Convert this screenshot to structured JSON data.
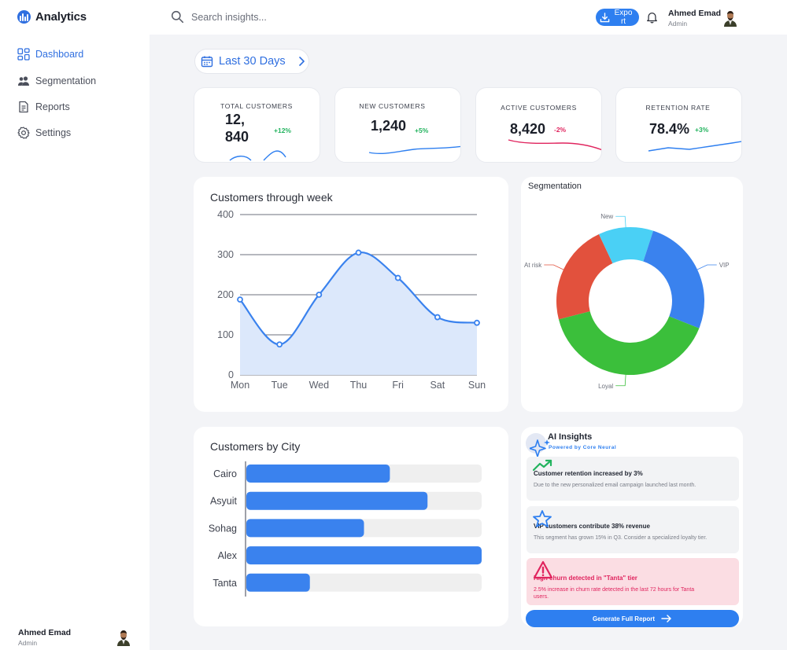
{
  "header": {
    "app_title": "Analytics",
    "search_placeholder": "Search insights...",
    "export_label": "Export",
    "user": {
      "name": "Ahmed Emad",
      "role": "Admin"
    }
  },
  "sidebar": {
    "items": [
      {
        "label": "Dashboard",
        "icon": "grid-icon",
        "active": true
      },
      {
        "label": "Segmentation",
        "icon": "users-icon",
        "active": false
      },
      {
        "label": "Reports",
        "icon": "document-icon",
        "active": false
      },
      {
        "label": "Settings",
        "icon": "gear-icon",
        "active": false
      }
    ],
    "user": {
      "name": "Ahmed Emad",
      "role": "Admin"
    }
  },
  "date_range": {
    "label": "Last 30 Days"
  },
  "kpis": [
    {
      "label": "TOTAL CUSTOMERS",
      "value": "12,840",
      "value_line1": "12,",
      "value_line2": "840",
      "delta": "+12%",
      "trend": "up"
    },
    {
      "label": "NEW CUSTOMERS",
      "value": "1,240",
      "delta": "+5%",
      "trend": "up"
    },
    {
      "label": "ACTIVE CUSTOMERS",
      "value": "8,420",
      "delta": "-2%",
      "trend": "down"
    },
    {
      "label": "RETENTION RATE",
      "value": "78.4%",
      "delta": "+3%",
      "trend": "up"
    }
  ],
  "colors": {
    "accent": "#2e7ff0",
    "positive": "#22b35e",
    "negative": "#e0245e",
    "segment_loyal": "#3bbf3b",
    "segment_at_risk": "#e2513d",
    "segment_new": "#4ad0f5",
    "segment_vip": "#3a82ee"
  },
  "weekly_chart": {
    "title": "Customers through week",
    "chart_data": {
      "type": "area",
      "categories": [
        "Mon",
        "Tue",
        "Wed",
        "Thu",
        "Fri",
        "Sat",
        "Sun"
      ],
      "values": [
        188,
        76,
        200,
        305,
        242,
        144,
        130
      ],
      "yticks": [
        0,
        100,
        200,
        300,
        400
      ],
      "ylim": [
        0,
        400
      ],
      "grid": true
    }
  },
  "segmentation": {
    "title": "Segmentation",
    "chart_data": {
      "type": "pie",
      "labels": [
        "At risk",
        "New",
        "VIP",
        "Loyal"
      ],
      "values": [
        22,
        12,
        26,
        40
      ],
      "donut": true
    }
  },
  "city_chart": {
    "title": "Customers by City",
    "chart_data": {
      "type": "bar",
      "orientation": "horizontal",
      "categories": [
        "Cairo",
        "Asyuit",
        "Sohag",
        "Alex",
        "Tanta"
      ],
      "values": [
        61,
        77,
        50,
        100,
        27
      ],
      "xlim": [
        0,
        100
      ]
    }
  },
  "ai_insights": {
    "title": "AI Insights",
    "subtitle": "Powered by Core Neural",
    "items": [
      {
        "icon": "trend-up-icon",
        "title": "Customer retention increased by 3%",
        "description": "Due to the new personalized email campaign launched last month.",
        "severity": "info"
      },
      {
        "icon": "star-icon",
        "title": "VIP customers contribute 38% revenue",
        "description": "This segment has grown 15% in Q3. Consider a specialized loyalty tier.",
        "severity": "info"
      },
      {
        "icon": "warning-icon",
        "title": "High churn detected in \"Tanta\" tier",
        "description": "2.5% increase in churn rate detected in the last 72 hours for Tanta users.",
        "severity": "alert"
      }
    ],
    "button_label": "Generate Full Report"
  }
}
